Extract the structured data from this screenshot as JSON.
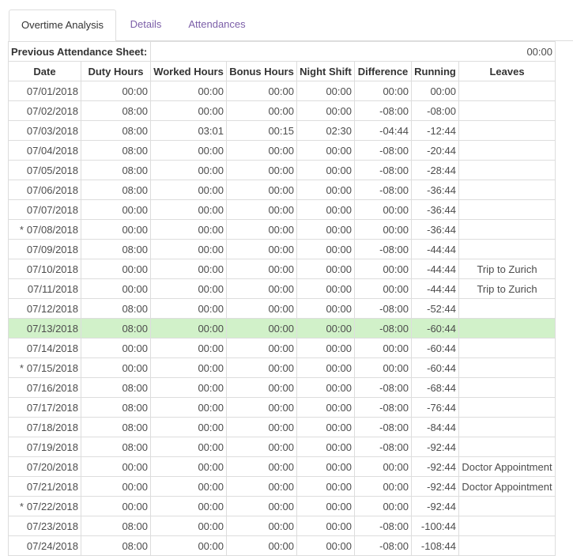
{
  "tabs": [
    {
      "label": "Overtime Analysis",
      "active": true
    },
    {
      "label": "Details",
      "active": false
    },
    {
      "label": "Attendances",
      "active": false
    }
  ],
  "sheet": {
    "previous_label": "Previous Attendance Sheet:",
    "previous_value": "00:00",
    "columns": [
      "Date",
      "Duty Hours",
      "Worked Hours",
      "Bonus Hours",
      "Night Shift",
      "Difference",
      "Running",
      "Leaves"
    ],
    "rows": [
      {
        "mark": "",
        "date": "07/01/2018",
        "duty": "00:00",
        "worked": "00:00",
        "bonus": "00:00",
        "night": "00:00",
        "diff": "00:00",
        "running": "00:00",
        "leave": ""
      },
      {
        "mark": "",
        "date": "07/02/2018",
        "duty": "08:00",
        "worked": "00:00",
        "bonus": "00:00",
        "night": "00:00",
        "diff": "-08:00",
        "running": "-08:00",
        "leave": ""
      },
      {
        "mark": "",
        "date": "07/03/2018",
        "duty": "08:00",
        "worked": "03:01",
        "bonus": "00:15",
        "night": "02:30",
        "diff": "-04:44",
        "running": "-12:44",
        "leave": ""
      },
      {
        "mark": "",
        "date": "07/04/2018",
        "duty": "08:00",
        "worked": "00:00",
        "bonus": "00:00",
        "night": "00:00",
        "diff": "-08:00",
        "running": "-20:44",
        "leave": ""
      },
      {
        "mark": "",
        "date": "07/05/2018",
        "duty": "08:00",
        "worked": "00:00",
        "bonus": "00:00",
        "night": "00:00",
        "diff": "-08:00",
        "running": "-28:44",
        "leave": ""
      },
      {
        "mark": "",
        "date": "07/06/2018",
        "duty": "08:00",
        "worked": "00:00",
        "bonus": "00:00",
        "night": "00:00",
        "diff": "-08:00",
        "running": "-36:44",
        "leave": ""
      },
      {
        "mark": "",
        "date": "07/07/2018",
        "duty": "00:00",
        "worked": "00:00",
        "bonus": "00:00",
        "night": "00:00",
        "diff": "00:00",
        "running": "-36:44",
        "leave": ""
      },
      {
        "mark": "*",
        "date": "07/08/2018",
        "duty": "00:00",
        "worked": "00:00",
        "bonus": "00:00",
        "night": "00:00",
        "diff": "00:00",
        "running": "-36:44",
        "leave": ""
      },
      {
        "mark": "",
        "date": "07/09/2018",
        "duty": "08:00",
        "worked": "00:00",
        "bonus": "00:00",
        "night": "00:00",
        "diff": "-08:00",
        "running": "-44:44",
        "leave": ""
      },
      {
        "mark": "",
        "date": "07/10/2018",
        "duty": "00:00",
        "worked": "00:00",
        "bonus": "00:00",
        "night": "00:00",
        "diff": "00:00",
        "running": "-44:44",
        "leave": "Trip to Zurich"
      },
      {
        "mark": "",
        "date": "07/11/2018",
        "duty": "00:00",
        "worked": "00:00",
        "bonus": "00:00",
        "night": "00:00",
        "diff": "00:00",
        "running": "-44:44",
        "leave": "Trip to Zurich"
      },
      {
        "mark": "",
        "date": "07/12/2018",
        "duty": "08:00",
        "worked": "00:00",
        "bonus": "00:00",
        "night": "00:00",
        "diff": "-08:00",
        "running": "-52:44",
        "leave": ""
      },
      {
        "mark": "",
        "date": "07/13/2018",
        "duty": "08:00",
        "worked": "00:00",
        "bonus": "00:00",
        "night": "00:00",
        "diff": "-08:00",
        "running": "-60:44",
        "leave": "",
        "highlight": true
      },
      {
        "mark": "",
        "date": "07/14/2018",
        "duty": "00:00",
        "worked": "00:00",
        "bonus": "00:00",
        "night": "00:00",
        "diff": "00:00",
        "running": "-60:44",
        "leave": ""
      },
      {
        "mark": "*",
        "date": "07/15/2018",
        "duty": "00:00",
        "worked": "00:00",
        "bonus": "00:00",
        "night": "00:00",
        "diff": "00:00",
        "running": "-60:44",
        "leave": ""
      },
      {
        "mark": "",
        "date": "07/16/2018",
        "duty": "08:00",
        "worked": "00:00",
        "bonus": "00:00",
        "night": "00:00",
        "diff": "-08:00",
        "running": "-68:44",
        "leave": ""
      },
      {
        "mark": "",
        "date": "07/17/2018",
        "duty": "08:00",
        "worked": "00:00",
        "bonus": "00:00",
        "night": "00:00",
        "diff": "-08:00",
        "running": "-76:44",
        "leave": ""
      },
      {
        "mark": "",
        "date": "07/18/2018",
        "duty": "08:00",
        "worked": "00:00",
        "bonus": "00:00",
        "night": "00:00",
        "diff": "-08:00",
        "running": "-84:44",
        "leave": ""
      },
      {
        "mark": "",
        "date": "07/19/2018",
        "duty": "08:00",
        "worked": "00:00",
        "bonus": "00:00",
        "night": "00:00",
        "diff": "-08:00",
        "running": "-92:44",
        "leave": ""
      },
      {
        "mark": "",
        "date": "07/20/2018",
        "duty": "00:00",
        "worked": "00:00",
        "bonus": "00:00",
        "night": "00:00",
        "diff": "00:00",
        "running": "-92:44",
        "leave": "Doctor Appointment"
      },
      {
        "mark": "",
        "date": "07/21/2018",
        "duty": "00:00",
        "worked": "00:00",
        "bonus": "00:00",
        "night": "00:00",
        "diff": "00:00",
        "running": "-92:44",
        "leave": "Doctor Appointment"
      },
      {
        "mark": "*",
        "date": "07/22/2018",
        "duty": "00:00",
        "worked": "00:00",
        "bonus": "00:00",
        "night": "00:00",
        "diff": "00:00",
        "running": "-92:44",
        "leave": ""
      },
      {
        "mark": "",
        "date": "07/23/2018",
        "duty": "08:00",
        "worked": "00:00",
        "bonus": "00:00",
        "night": "00:00",
        "diff": "-08:00",
        "running": "-100:44",
        "leave": ""
      },
      {
        "mark": "",
        "date": "07/24/2018",
        "duty": "08:00",
        "worked": "00:00",
        "bonus": "00:00",
        "night": "00:00",
        "diff": "-08:00",
        "running": "-108:44",
        "leave": ""
      }
    ]
  },
  "colors": {
    "highlight_row": "#d1f1c9",
    "tab_link": "#7c5fa8",
    "border": "#dddddd"
  }
}
